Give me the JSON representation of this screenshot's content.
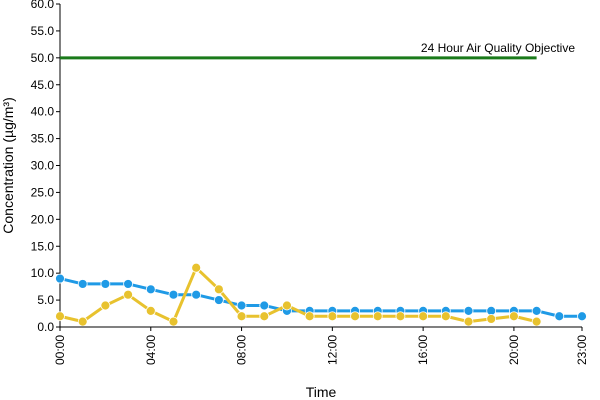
{
  "chart_data": {
    "type": "line",
    "xlabel": "Time",
    "ylabel": "Concentration (µg/m³)",
    "ylim": [
      0,
      60
    ],
    "yticks": [
      "0.0",
      "5.0",
      "10.0",
      "15.0",
      "20.0",
      "25.0",
      "30.0",
      "35.0",
      "40.0",
      "45.0",
      "50.0",
      "55.0",
      "60.0"
    ],
    "xlim": [
      0,
      23
    ],
    "xticks": [
      {
        "x": 0,
        "label": "00:00"
      },
      {
        "x": 4,
        "label": "04:00"
      },
      {
        "x": 8,
        "label": "08:00"
      },
      {
        "x": 12,
        "label": "12:00"
      },
      {
        "x": 16,
        "label": "16:00"
      },
      {
        "x": 20,
        "label": "20:00"
      },
      {
        "x": 23,
        "label": "23:00"
      }
    ],
    "grid": false,
    "series": [
      {
        "color": "#1f9ae6",
        "points": [
          [
            0,
            9
          ],
          [
            1,
            8
          ],
          [
            2,
            8
          ],
          [
            3,
            8
          ],
          [
            4,
            7
          ],
          [
            5,
            6
          ],
          [
            6,
            6
          ],
          [
            7,
            5
          ],
          [
            8,
            4
          ],
          [
            9,
            4
          ],
          [
            10,
            3
          ],
          [
            11,
            3
          ],
          [
            12,
            3
          ],
          [
            13,
            3
          ],
          [
            14,
            3
          ],
          [
            15,
            3
          ],
          [
            16,
            3
          ],
          [
            17,
            3
          ],
          [
            18,
            3
          ],
          [
            19,
            3
          ],
          [
            20,
            3
          ],
          [
            21,
            3
          ],
          [
            22,
            2
          ],
          [
            23,
            2
          ]
        ]
      },
      {
        "color": "#e8c22e",
        "points": [
          [
            0,
            2
          ],
          [
            1,
            1
          ],
          [
            2,
            4
          ],
          [
            3,
            6
          ],
          [
            4,
            3
          ],
          [
            5,
            1
          ],
          [
            6,
            11
          ],
          [
            7,
            7
          ],
          [
            8,
            2
          ],
          [
            9,
            2
          ],
          [
            10,
            4
          ],
          [
            11,
            2
          ],
          [
            12,
            2
          ],
          [
            13,
            2
          ],
          [
            14,
            2
          ],
          [
            15,
            2
          ],
          [
            16,
            2
          ],
          [
            17,
            2
          ],
          [
            18,
            1
          ],
          [
            19,
            1.5
          ],
          [
            20,
            2
          ],
          [
            21,
            1
          ]
        ]
      }
    ],
    "threshold": {
      "label": "24 Hour Air Quality Objective",
      "value": 50,
      "x_start": 0,
      "x_end": 21,
      "color": "#1a7a1a"
    }
  }
}
